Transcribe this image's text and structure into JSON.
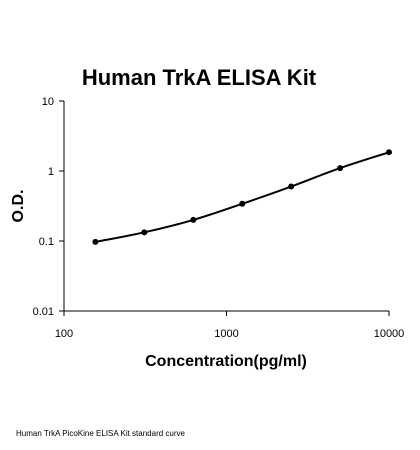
{
  "chart_data": {
    "type": "line",
    "title": "Human TrkA ELISA Kit",
    "xlabel": "Concentration(pg/ml)",
    "ylabel": "O.D.",
    "x_scale": "log",
    "y_scale": "log",
    "xlim": [
      100,
      10000
    ],
    "ylim": [
      0.01,
      10
    ],
    "x_ticks": [
      "100",
      "1000",
      "10000"
    ],
    "y_ticks": [
      "0.01",
      "0.1",
      "1",
      "10"
    ],
    "grid": false,
    "legend": "none",
    "series": [
      {
        "x": [
          156,
          312,
          625,
          1250,
          2500,
          5000,
          10000
        ],
        "y": [
          0.097,
          0.133,
          0.2,
          0.34,
          0.6,
          1.1,
          1.85
        ]
      }
    ],
    "line_color": "#000000",
    "marker_color": "#000000"
  },
  "caption": "Human TrkA PicoKine ELISA Kit standard curve"
}
